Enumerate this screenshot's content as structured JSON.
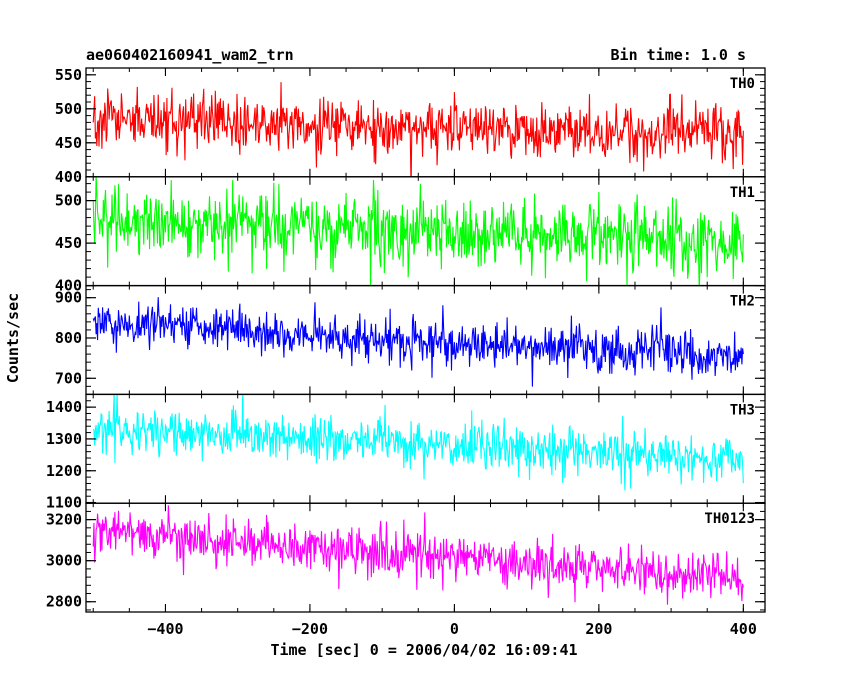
{
  "header": {
    "title": "ae060402160941_wam2_trn",
    "bin_time": "Bin time: 1.0 s"
  },
  "chart_data": {
    "type": "line",
    "title": "ae060402160941_wam2_trn",
    "subtitle": "Bin time: 1.0 s",
    "xlabel": "Time [sec] 0 = 2006/04/02 16:09:41",
    "ylabel": "Counts/sec",
    "xlim": [
      -510,
      430
    ],
    "x_ticks": [
      -400,
      -200,
      0,
      200,
      400
    ],
    "x_range_data": [
      -500,
      400
    ],
    "bin_time_s": 1.0,
    "grid": false,
    "panels": [
      {
        "name": "TH0",
        "color": "#ff0000",
        "ylim": [
          400,
          560
        ],
        "y_ticks": [
          400,
          450,
          500,
          550
        ],
        "trend_start": 485,
        "trend_end": 462,
        "noise_sd": 20
      },
      {
        "name": "TH1",
        "color": "#00ff00",
        "ylim": [
          400,
          528
        ],
        "y_ticks": [
          400,
          450,
          500
        ],
        "trend_start": 478,
        "trend_end": 452,
        "noise_sd": 20
      },
      {
        "name": "TH2",
        "color": "#0000ff",
        "ylim": [
          660,
          930
        ],
        "y_ticks": [
          700,
          800,
          900
        ],
        "trend_start": 840,
        "trend_end": 750,
        "noise_sd": 29
      },
      {
        "name": "TH3",
        "color": "#00ffff",
        "ylim": [
          1098,
          1440
        ],
        "y_ticks": [
          1100,
          1200,
          1300,
          1400
        ],
        "trend_start": 1335,
        "trend_end": 1235,
        "noise_sd": 37
      },
      {
        "name": "TH0123",
        "color": "#ff00ff",
        "ylim": [
          2750,
          3280
        ],
        "y_ticks": [
          2800,
          3000,
          3200
        ],
        "trend_start": 3140,
        "trend_end": 2910,
        "noise_sd": 55
      }
    ]
  }
}
